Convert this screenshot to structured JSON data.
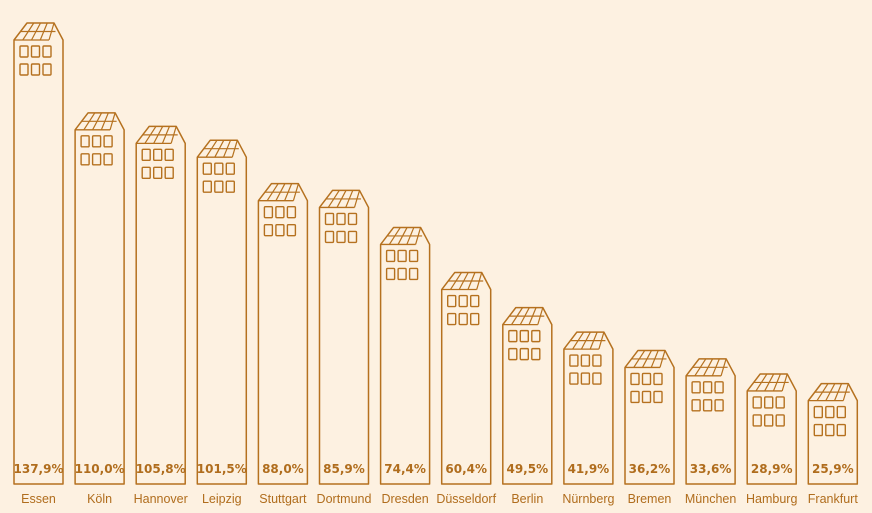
{
  "colors": {
    "background": "#fdf1e1",
    "stroke": "#b5711f",
    "text": "#b06d1d",
    "fill": "#fdf1e1"
  },
  "chart_data": {
    "type": "bar",
    "title": "",
    "xlabel": "",
    "ylabel": "",
    "categories": [
      "Essen",
      "Köln",
      "Hannover",
      "Leipzig",
      "Stuttgart",
      "Dortmund",
      "Dresden",
      "Düsseldorf",
      "Berlin",
      "Nürnberg",
      "Bremen",
      "München",
      "Hamburg",
      "Frankfurt"
    ],
    "values": [
      137.9,
      110.0,
      105.8,
      101.5,
      88.0,
      85.9,
      74.4,
      60.4,
      49.5,
      41.9,
      36.2,
      33.6,
      28.9,
      25.9
    ],
    "labels": [
      "137,9%",
      "110,0%",
      "105,8%",
      "101,5%",
      "88,0%",
      "85,9%",
      "74,4%",
      "60,4%",
      "49,5%",
      "41,9%",
      "36,2%",
      "33,6%",
      "28,9%",
      "25,9%"
    ],
    "unit": "%",
    "bar_style": "building-shaped bars with solar-panel roofs and windows",
    "grid": false,
    "legend": null
  }
}
